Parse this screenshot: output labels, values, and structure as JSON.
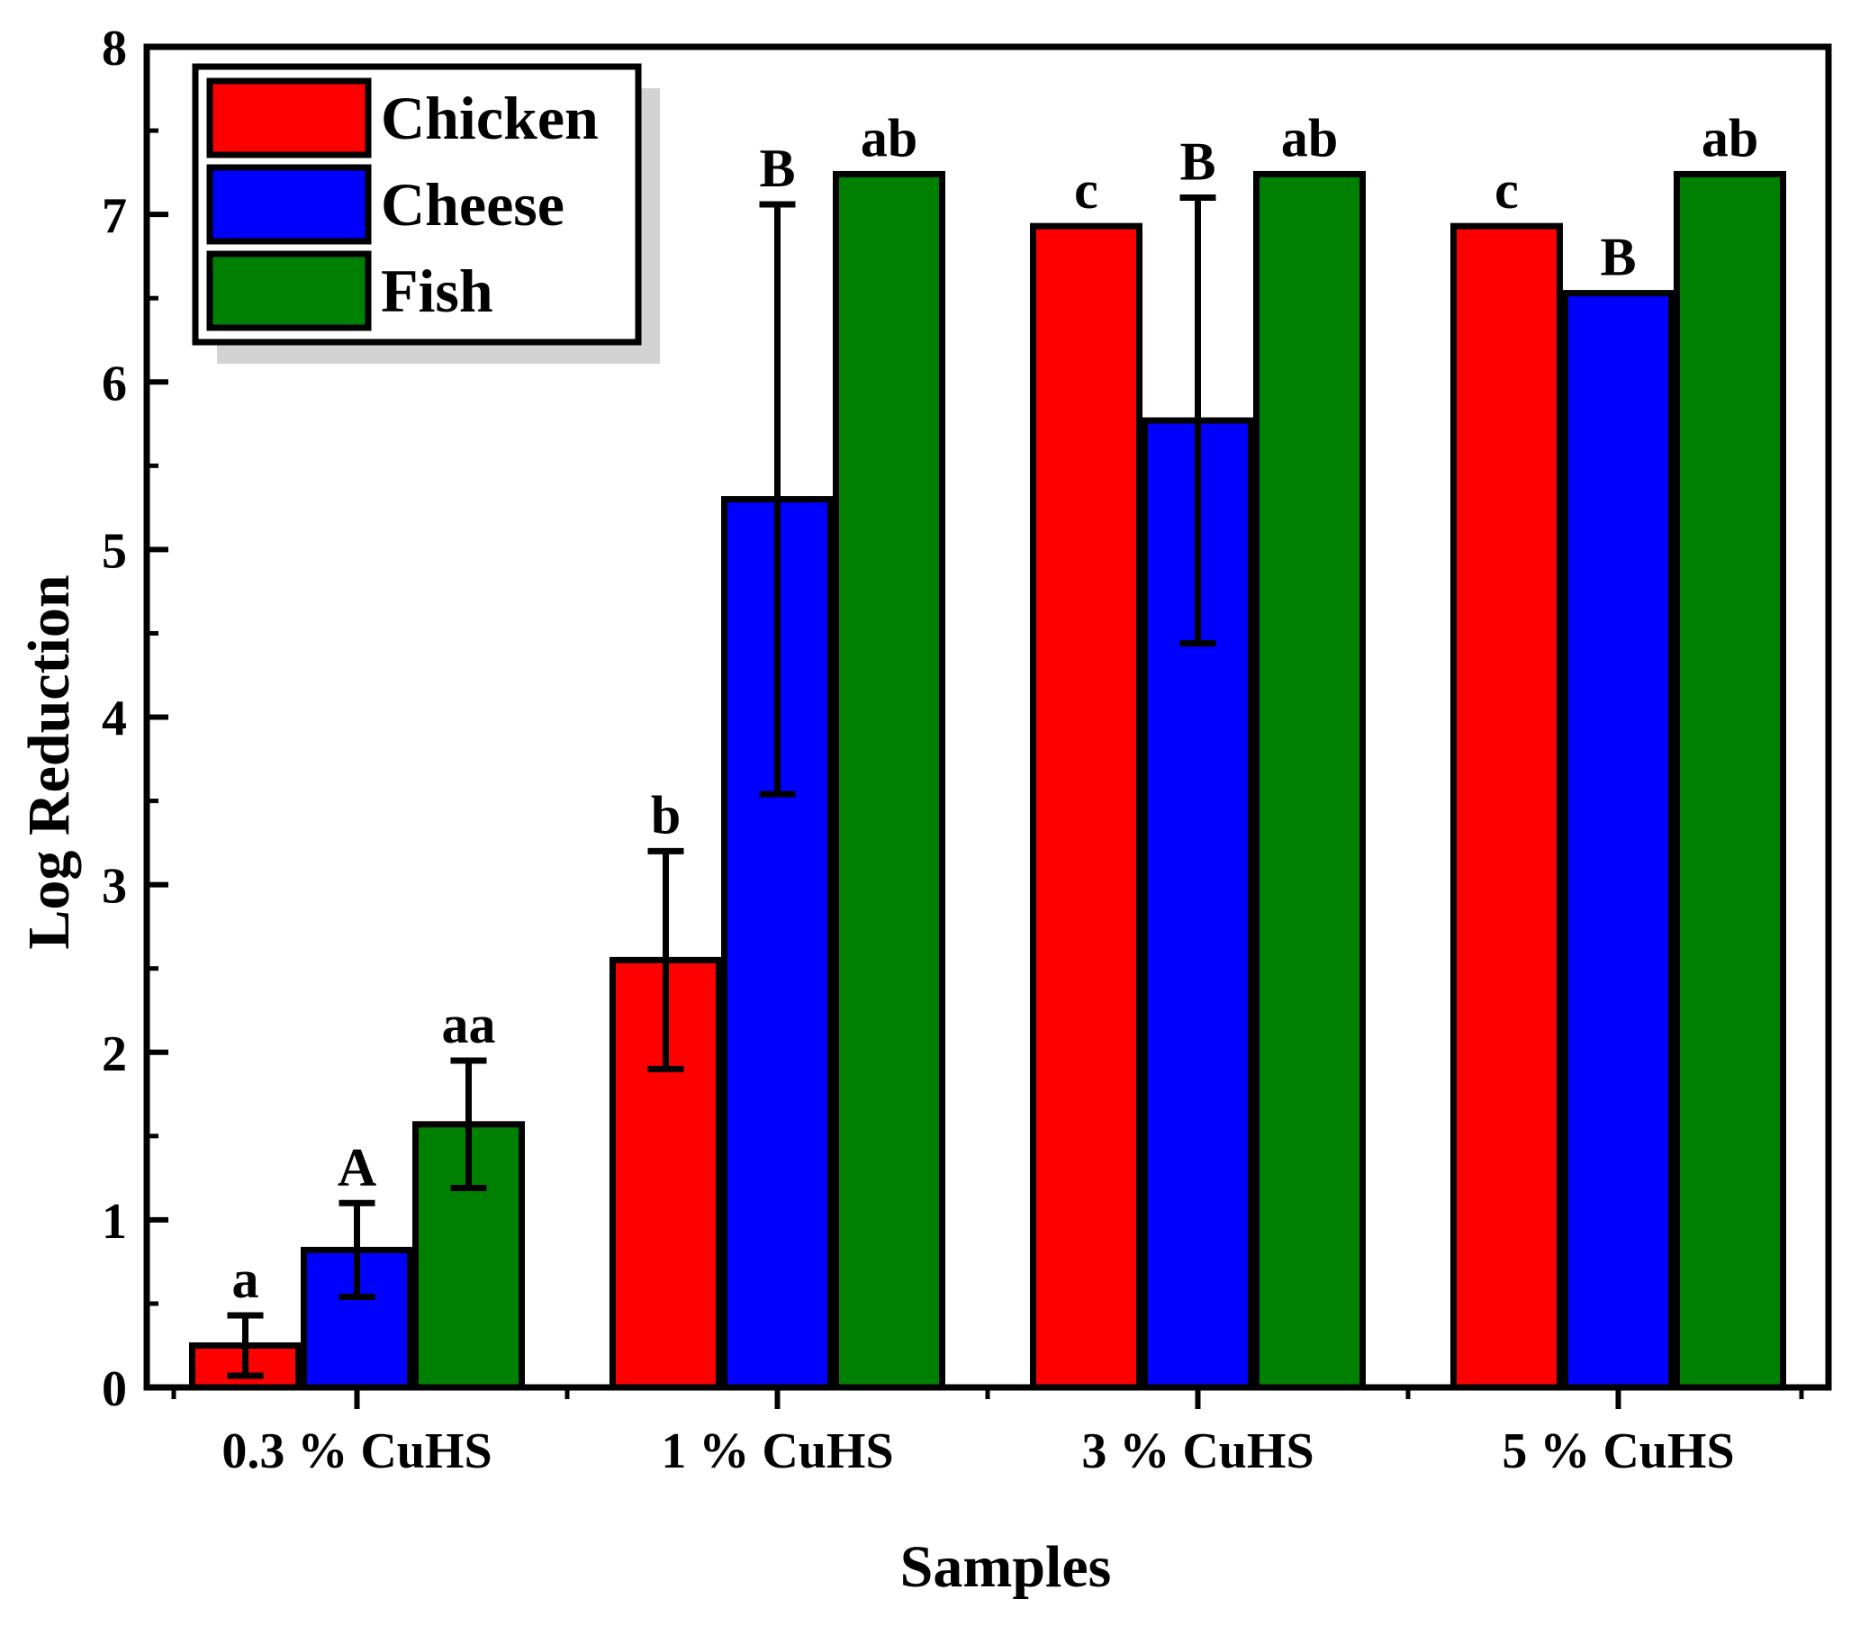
{
  "chart_data": {
    "type": "bar",
    "title": "",
    "xlabel": "Samples",
    "ylabel": "Log Reduction",
    "ylim": [
      0,
      8
    ],
    "yticks": [
      0,
      1,
      2,
      3,
      4,
      5,
      6,
      7,
      8
    ],
    "yticks_labels": [
      "0",
      "1",
      "2",
      "3",
      "4",
      "5",
      "6",
      "7",
      "8"
    ],
    "grid": false,
    "legend_position": "top-left",
    "categories": [
      "0.3 % CuHS",
      "1 % CuHS",
      "3 % CuHS",
      "5 % CuHS"
    ],
    "series": [
      {
        "name": "Chicken",
        "color": "#ff0000",
        "values": [
          0.25,
          2.55,
          6.93,
          6.93
        ],
        "errors": [
          0.18,
          0.65,
          null,
          null
        ],
        "labels": [
          "a",
          "b",
          "c",
          "c"
        ]
      },
      {
        "name": "Cheese",
        "color": "#0000ff",
        "values": [
          0.82,
          5.3,
          5.77,
          6.53
        ],
        "errors": [
          0.28,
          1.76,
          1.33,
          null
        ],
        "labels": [
          "A",
          "B",
          "B",
          "B"
        ]
      },
      {
        "name": "Fish",
        "color": "#008000",
        "values": [
          1.57,
          7.24,
          7.24,
          7.24
        ],
        "errors": [
          0.38,
          null,
          null,
          null
        ],
        "labels": [
          "aa",
          "ab",
          "ab",
          "ab"
        ]
      }
    ]
  }
}
